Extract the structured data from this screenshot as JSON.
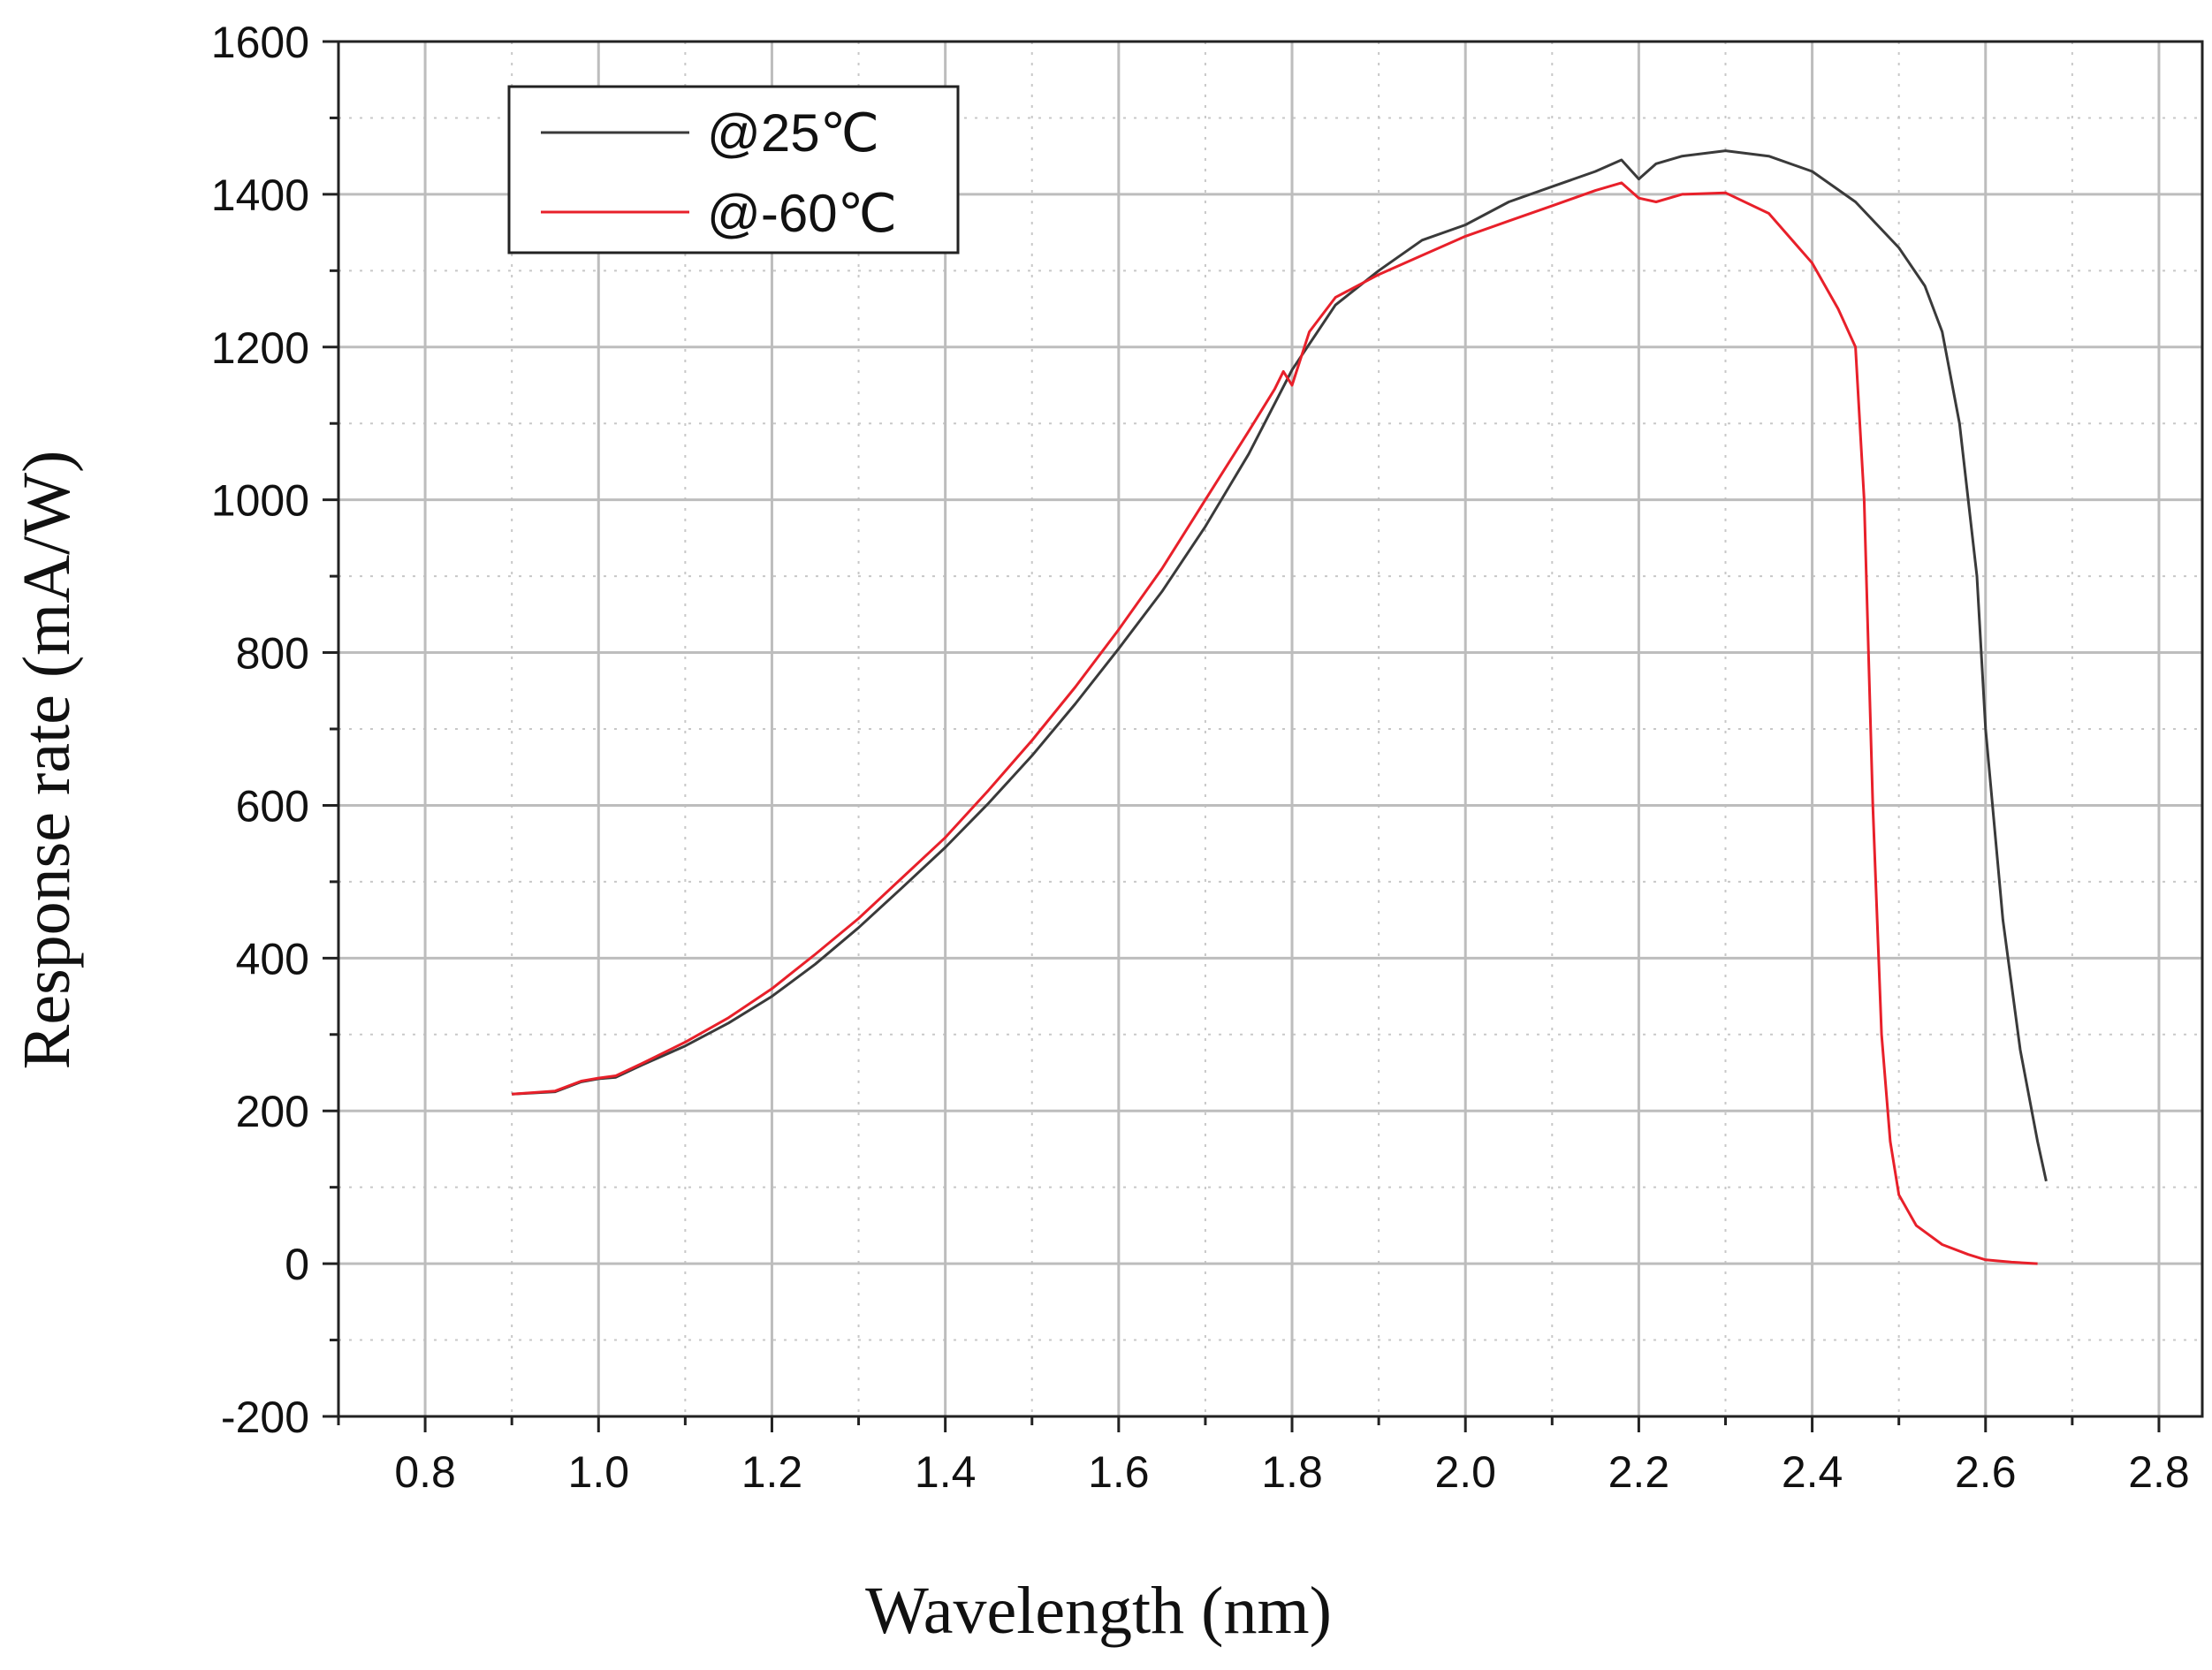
{
  "chart_data": {
    "type": "line",
    "title": "",
    "xlabel": "Wavelength (nm)",
    "ylabel": "Response rate (mA/W)",
    "xlim": [
      0.7,
      2.85
    ],
    "ylim": [
      -200,
      1600
    ],
    "x_ticks": [
      0.8,
      1.0,
      1.2,
      1.4,
      1.6,
      1.8,
      2.0,
      2.2,
      2.4,
      2.6,
      2.8
    ],
    "x_tick_labels": [
      "0.8",
      "1.0",
      "1.2",
      "1.4",
      "1.6",
      "1.8",
      "2.0",
      "2.2",
      "2.4",
      "2.6",
      "2.8"
    ],
    "y_ticks": [
      -200,
      0,
      200,
      400,
      600,
      800,
      1000,
      1200,
      1400,
      1600
    ],
    "y_tick_labels": [
      "-200",
      "0",
      "200",
      "400",
      "600",
      "800",
      "1000",
      "1200",
      "1400",
      "1600"
    ],
    "grid": true,
    "legend_position": "top-left",
    "series": [
      {
        "name": "@25℃",
        "color": "#3a3a3a",
        "x": [
          0.9,
          0.95,
          0.98,
          1.0,
          1.02,
          1.05,
          1.1,
          1.15,
          1.2,
          1.25,
          1.3,
          1.35,
          1.4,
          1.45,
          1.5,
          1.55,
          1.6,
          1.65,
          1.7,
          1.75,
          1.8,
          1.85,
          1.9,
          1.95,
          2.0,
          2.05,
          2.1,
          2.15,
          2.18,
          2.2,
          2.22,
          2.25,
          2.3,
          2.35,
          2.4,
          2.45,
          2.5,
          2.53,
          2.55,
          2.57,
          2.59,
          2.6,
          2.62,
          2.64,
          2.66,
          2.67
        ],
        "y": [
          222,
          225,
          238,
          242,
          244,
          260,
          285,
          315,
          350,
          392,
          440,
          492,
          545,
          603,
          665,
          733,
          805,
          880,
          965,
          1060,
          1170,
          1255,
          1300,
          1340,
          1360,
          1390,
          1410,
          1430,
          1445,
          1420,
          1440,
          1450,
          1457,
          1450,
          1430,
          1390,
          1330,
          1280,
          1220,
          1100,
          900,
          700,
          450,
          280,
          160,
          108
        ]
      },
      {
        "name": "@-60℃",
        "color": "#e8202a",
        "x": [
          0.9,
          0.95,
          0.98,
          1.0,
          1.02,
          1.05,
          1.1,
          1.15,
          1.2,
          1.25,
          1.3,
          1.35,
          1.4,
          1.45,
          1.5,
          1.55,
          1.6,
          1.65,
          1.7,
          1.75,
          1.78,
          1.79,
          1.8,
          1.82,
          1.85,
          1.9,
          1.95,
          2.0,
          2.05,
          2.1,
          2.15,
          2.18,
          2.2,
          2.22,
          2.25,
          2.3,
          2.35,
          2.4,
          2.43,
          2.45,
          2.46,
          2.47,
          2.48,
          2.49,
          2.5,
          2.52,
          2.55,
          2.58,
          2.6,
          2.63,
          2.66
        ],
        "y": [
          222,
          226,
          239,
          243,
          246,
          262,
          290,
          322,
          360,
          405,
          452,
          505,
          558,
          620,
          685,
          755,
          830,
          910,
          1000,
          1090,
          1145,
          1168,
          1150,
          1220,
          1265,
          1295,
          1320,
          1345,
          1365,
          1385,
          1405,
          1415,
          1395,
          1390,
          1400,
          1402,
          1375,
          1310,
          1250,
          1200,
          1000,
          600,
          300,
          160,
          90,
          50,
          25,
          12,
          5,
          2,
          0
        ]
      }
    ]
  }
}
